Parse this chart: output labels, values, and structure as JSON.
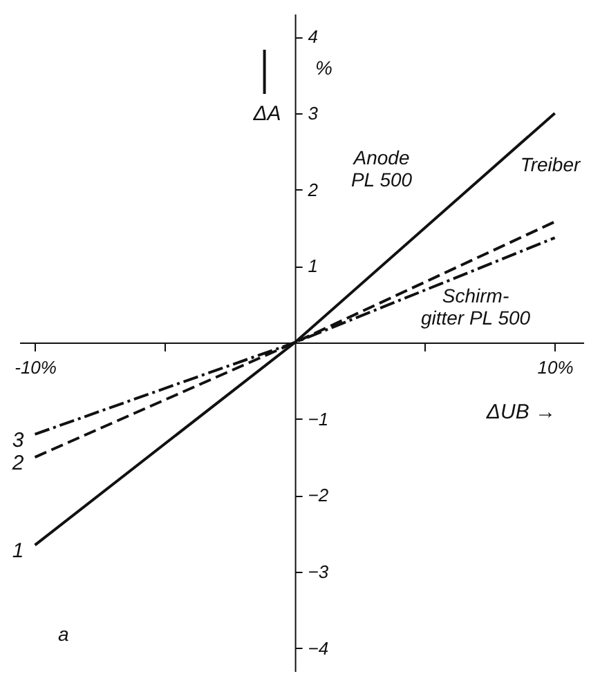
{
  "chart_data": {
    "type": "line",
    "xlabel": "ΔUB →",
    "ylabel": "ΔA",
    "x": [
      -10,
      0,
      10
    ],
    "series": [
      {
        "name": "1",
        "color": "#111111",
        "line_style": "solid",
        "values": [
          -2.65,
          0,
          3.0
        ]
      },
      {
        "name": "2",
        "color": "#111111",
        "line_style": "dashed",
        "values": [
          -1.5,
          0,
          1.58
        ]
      },
      {
        "name": "3",
        "color": "#111111",
        "line_style": "dashdot",
        "values": [
          -1.2,
          0,
          1.37
        ]
      }
    ],
    "xlim": [
      -10.6,
      11.1
    ],
    "ylim": [
      -4.3,
      4.3
    ],
    "xticks": [
      {
        "value": -10,
        "label": "-10%"
      },
      {
        "value": -5,
        "label": null
      },
      {
        "value": 5,
        "label": null
      },
      {
        "value": 10,
        "label": "10%"
      }
    ],
    "yticks": [
      -4,
      -3,
      -2,
      -1,
      1,
      2,
      3,
      4
    ],
    "annotations": [
      "Anode\nPL 500",
      "Treiber",
      "Schirm-\ngitter PL 500",
      "%",
      "a"
    ],
    "grid": false,
    "marker": "none"
  }
}
